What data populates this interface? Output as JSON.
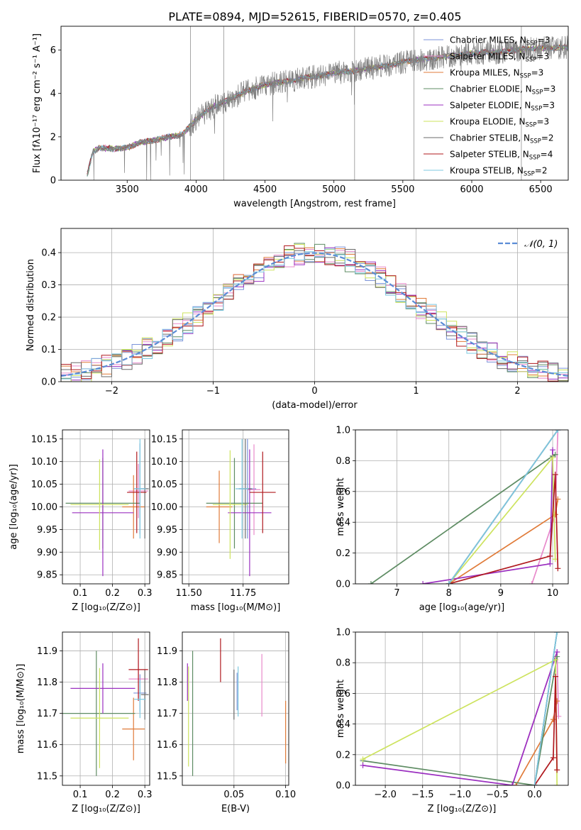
{
  "figure_title": "PLATE=0894, MJD=52615, FIBERID=0570, z=0.405",
  "colors": {
    "chabrier_miles": "#7b93d9",
    "salpeter_miles": "#e88acb",
    "kroupa_miles": "#e07b39",
    "chabrier_elodie": "#5e8c63",
    "salpeter_elodie": "#9b30c0",
    "kroupa_elodie": "#cde35e",
    "chabrier_stelib": "#6b6b6b",
    "salpeter_stelib": "#b0191e",
    "kroupa_stelib": "#7cc8e0",
    "data": "#808080",
    "gaussian": "#5b8cd6"
  },
  "legend_models": [
    {
      "label": "Chabrier MILES, N",
      "sub": "SSP",
      "tail": "=3",
      "color": "#7b93d9"
    },
    {
      "label": "Salpeter MILES, N",
      "sub": "SSP",
      "tail": "=3",
      "color": "#e88acb"
    },
    {
      "label": "Kroupa MILES, N",
      "sub": "SSP",
      "tail": "=3",
      "color": "#e07b39"
    },
    {
      "label": "Chabrier ELODIE, N",
      "sub": "SSP",
      "tail": "=3",
      "color": "#5e8c63"
    },
    {
      "label": "Salpeter ELODIE, N",
      "sub": "SSP",
      "tail": "=3",
      "color": "#9b30c0"
    },
    {
      "label": "Kroupa ELODIE, N",
      "sub": "SSP",
      "tail": "=3",
      "color": "#cde35e"
    },
    {
      "label": "Chabrier STELIB, N",
      "sub": "SSP",
      "tail": "=2",
      "color": "#6b6b6b"
    },
    {
      "label": "Salpeter STELIB, N",
      "sub": "SSP",
      "tail": "=4",
      "color": "#b0191e"
    },
    {
      "label": "Kroupa STELIB, N",
      "sub": "SSP",
      "tail": "=2",
      "color": "#7cc8e0"
    }
  ],
  "chart_data": [
    {
      "id": "spectrum",
      "type": "line",
      "title": "PLATE=0894, MJD=52615, FIBERID=0570, z=0.405",
      "xlabel": "wavelength [Angstrom, rest frame]",
      "ylabel": "Flux [fλ10⁻¹⁷ erg cm⁻² s⁻¹ A⁻¹]",
      "xlim": [
        3020,
        6700
      ],
      "ylim": [
        0,
        7.1
      ],
      "xticks": [
        3500,
        4000,
        4500,
        5000,
        5500,
        6000,
        6500
      ],
      "yticks": [
        0,
        2,
        4,
        6
      ],
      "legend_position": "top-right",
      "continuum_x": [
        3200,
        3250,
        3300,
        3400,
        3500,
        3600,
        3700,
        3800,
        3900,
        4000,
        4100,
        4200,
        4300,
        4400,
        4500,
        4600,
        4700,
        4800,
        4900,
        5000,
        5100,
        5200,
        5300,
        5400,
        5500,
        5600,
        5700,
        5800,
        5900,
        6000,
        6100,
        6200,
        6300,
        6400,
        6500,
        6600,
        6700
      ],
      "continuum_y": [
        0,
        1.3,
        1.5,
        1.45,
        1.5,
        1.75,
        1.85,
        2.0,
        2.1,
        2.8,
        3.3,
        3.6,
        3.9,
        4.2,
        4.4,
        4.5,
        4.6,
        4.75,
        4.8,
        4.95,
        5.0,
        5.1,
        5.2,
        5.3,
        5.45,
        5.55,
        5.6,
        5.7,
        5.75,
        5.85,
        5.9,
        5.9,
        6.0,
        6.05,
        6.1,
        6.1,
        6.15
      ]
    },
    {
      "id": "residuals",
      "type": "line",
      "xlabel": "(data-model)/error",
      "ylabel": "Normed distribution",
      "xlim": [
        -2.5,
        2.5
      ],
      "ylim": [
        0,
        0.475
      ],
      "xticks": [
        -2,
        -1,
        0,
        1,
        2
      ],
      "yticks": [
        0.0,
        0.1,
        0.2,
        0.3,
        0.4
      ],
      "legend": "𝒩(0, 1)",
      "legend_position": "top-right",
      "bin_width": 0.1
    },
    {
      "id": "age_vs_Z",
      "type": "scatter",
      "xlabel": "Z [log₁₀(Z/Z⊙)]",
      "ylabel": "age  [log₁₀(age/yr)]",
      "xlim": [
        0.045,
        0.315
      ],
      "ylim": [
        9.83,
        10.17
      ],
      "xticks": [
        0.1,
        0.2,
        0.3
      ],
      "yticks": [
        9.85,
        9.9,
        9.95,
        10.0,
        10.05,
        10.1,
        10.15
      ],
      "points": [
        {
          "model": "Chabrier MILES",
          "x": 0.285,
          "y": 10.04,
          "xerr": 0.02,
          "yerr": 0.1
        },
        {
          "model": "Salpeter MILES",
          "x": 0.28,
          "y": 10.035,
          "xerr": 0.03,
          "yerr": 0.06
        },
        {
          "model": "Kroupa MILES",
          "x": 0.265,
          "y": 10.0,
          "xerr": 0.035,
          "yerr": 0.07
        },
        {
          "model": "Chabrier ELODIE",
          "x": 0.17,
          "y": 10.008,
          "xerr": 0.115,
          "yerr": 0.1
        },
        {
          "model": "Salpeter ELODIE",
          "x": 0.17,
          "y": 9.987,
          "xerr": 0.095,
          "yerr": 0.14
        },
        {
          "model": "Kroupa ELODIE",
          "x": 0.16,
          "y": 10.005,
          "xerr": 0.09,
          "yerr": 0.1
        },
        {
          "model": "Chabrier STELIB",
          "x": 0.3,
          "y": 10.04,
          "xerr": 0.012,
          "yerr": 0.11
        },
        {
          "model": "Salpeter STELIB",
          "x": 0.275,
          "y": 10.032,
          "xerr": 0.03,
          "yerr": 0.09
        },
        {
          "model": "Kroupa STELIB",
          "x": 0.285,
          "y": 10.04,
          "xerr": 0.018,
          "yerr": 0.11
        }
      ]
    },
    {
      "id": "age_vs_mass",
      "type": "scatter",
      "xlabel": "mass [log₁₀(M/M⊙)]",
      "ylabel": "",
      "xlim": [
        11.47,
        11.96
      ],
      "ylim": [
        9.83,
        10.17
      ],
      "xticks": [
        11.5,
        11.75
      ],
      "yticks": [
        9.85,
        9.9,
        9.95,
        10.0,
        10.05,
        10.1,
        10.15
      ],
      "points": [
        {
          "model": "Chabrier MILES",
          "x": 11.77,
          "y": 10.04,
          "xerr": 0.04,
          "yerr": 0.11
        },
        {
          "model": "Salpeter MILES",
          "x": 11.8,
          "y": 10.038,
          "xerr": 0.03,
          "yerr": 0.1
        },
        {
          "model": "Kroupa MILES",
          "x": 11.64,
          "y": 10.0,
          "xerr": 0.06,
          "yerr": 0.08
        },
        {
          "model": "Chabrier ELODIE",
          "x": 11.71,
          "y": 10.008,
          "xerr": 0.13,
          "yerr": 0.1
        },
        {
          "model": "Salpeter ELODIE",
          "x": 11.78,
          "y": 9.987,
          "xerr": 0.1,
          "yerr": 0.14
        },
        {
          "model": "Kroupa ELODIE",
          "x": 11.69,
          "y": 10.005,
          "xerr": 0.08,
          "yerr": 0.12
        },
        {
          "model": "Chabrier STELIB",
          "x": 11.76,
          "y": 10.04,
          "xerr": 0.03,
          "yerr": 0.11
        },
        {
          "model": "Salpeter STELIB",
          "x": 11.84,
          "y": 10.032,
          "xerr": 0.06,
          "yerr": 0.09
        },
        {
          "model": "Kroupa STELIB",
          "x": 11.745,
          "y": 10.04,
          "xerr": 0.03,
          "yerr": 0.11
        }
      ]
    },
    {
      "id": "weight_vs_age",
      "type": "line",
      "xlabel": "age  [log₁₀(age/yr)]",
      "ylabel": "mass weight",
      "xlim": [
        6.2,
        10.3
      ],
      "ylim": [
        0,
        1
      ],
      "xticks": [
        7,
        8,
        9,
        10
      ],
      "yticks": [
        0.0,
        0.2,
        0.4,
        0.6,
        0.8,
        1.0
      ],
      "series": [
        {
          "model": "Chabrier MILES",
          "x": [
            8.0,
            10.1
          ],
          "y": [
            0.0,
            1.0
          ]
        },
        {
          "model": "Salpeter MILES",
          "x": [
            9.6,
            10.05,
            10.1
          ],
          "y": [
            0.0,
            0.45,
            1.0
          ]
        },
        {
          "model": "Kroupa MILES",
          "x": [
            8.0,
            10.05,
            10.1
          ],
          "y": [
            0.0,
            0.45,
            0.55
          ]
        },
        {
          "model": "Chabrier ELODIE",
          "x": [
            6.5,
            10.0,
            10.05
          ],
          "y": [
            0.0,
            0.83,
            0.84
          ]
        },
        {
          "model": "Salpeter ELODIE",
          "x": [
            7.5,
            9.95,
            10.0
          ],
          "y": [
            0.0,
            0.13,
            0.87
          ]
        },
        {
          "model": "Kroupa ELODIE",
          "x": [
            8.0,
            10.0,
            10.05
          ],
          "y": [
            0.0,
            0.82,
            0.16
          ]
        },
        {
          "model": "Chabrier STELIB",
          "x": [
            8.0,
            10.1
          ],
          "y": [
            0.0,
            1.0
          ]
        },
        {
          "model": "Salpeter STELIB",
          "x": [
            8.0,
            9.95,
            10.05,
            10.1
          ],
          "y": [
            0.0,
            0.18,
            0.71,
            0.1
          ]
        },
        {
          "model": "Kroupa STELIB",
          "x": [
            8.0,
            10.1
          ],
          "y": [
            0.0,
            1.0
          ]
        }
      ]
    },
    {
      "id": "mass_vs_Z",
      "type": "scatter",
      "xlabel": "Z [log₁₀(Z/Z⊙)]",
      "ylabel": "mass [log₁₀(M/M⊙)]",
      "xlim": [
        0.045,
        0.315
      ],
      "ylim": [
        11.47,
        11.96
      ],
      "xticks": [
        0.1,
        0.2,
        0.3
      ],
      "yticks": [
        11.5,
        11.6,
        11.7,
        11.8,
        11.9
      ],
      "points": [
        {
          "model": "Chabrier MILES",
          "x": 0.285,
          "y": 11.765,
          "xerr": 0.02,
          "yerr": 0.06
        },
        {
          "model": "Salpeter MILES",
          "x": 0.28,
          "y": 11.81,
          "xerr": 0.03,
          "yerr": 0.06
        },
        {
          "model": "Kroupa MILES",
          "x": 0.265,
          "y": 11.65,
          "xerr": 0.035,
          "yerr": 0.1
        },
        {
          "model": "Chabrier ELODIE",
          "x": 0.15,
          "y": 11.7,
          "xerr": 0.12,
          "yerr": 0.2
        },
        {
          "model": "Salpeter ELODIE",
          "x": 0.17,
          "y": 11.78,
          "xerr": 0.1,
          "yerr": 0.08
        },
        {
          "model": "Kroupa ELODIE",
          "x": 0.16,
          "y": 11.685,
          "xerr": 0.09,
          "yerr": 0.16
        },
        {
          "model": "Chabrier STELIB",
          "x": 0.3,
          "y": 11.76,
          "xerr": 0.012,
          "yerr": 0.08
        },
        {
          "model": "Salpeter STELIB",
          "x": 0.28,
          "y": 11.84,
          "xerr": 0.03,
          "yerr": 0.1
        },
        {
          "model": "Kroupa STELIB",
          "x": 0.285,
          "y": 11.745,
          "xerr": 0.018,
          "yerr": 0.06
        }
      ]
    },
    {
      "id": "mass_vs_ebv",
      "type": "scatter",
      "xlabel": "E(B-V)",
      "ylabel": "",
      "xlim": [
        0.0,
        0.103
      ],
      "ylim": [
        11.47,
        11.96
      ],
      "xticks": [
        0.05,
        0.1
      ],
      "yticks": [
        11.5,
        11.6,
        11.7,
        11.8,
        11.9
      ],
      "points": [
        {
          "model": "Chabrier MILES",
          "x": 0.053,
          "y": 11.77,
          "yerr": 0.06
        },
        {
          "model": "Salpeter MILES",
          "x": 0.077,
          "y": 11.79,
          "yerr": 0.1
        },
        {
          "model": "Kroupa MILES",
          "x": 0.1,
          "y": 11.64,
          "yerr": 0.1
        },
        {
          "model": "Chabrier ELODIE",
          "x": 0.01,
          "y": 11.7,
          "yerr": 0.2
        },
        {
          "model": "Salpeter ELODIE",
          "x": 0.005,
          "y": 11.8,
          "yerr": 0.06
        },
        {
          "model": "Kroupa ELODIE",
          "x": 0.006,
          "y": 11.69,
          "yerr": 0.16
        },
        {
          "model": "Chabrier STELIB",
          "x": 0.05,
          "y": 11.76,
          "yerr": 0.08
        },
        {
          "model": "Salpeter STELIB",
          "x": 0.037,
          "y": 11.87,
          "yerr": 0.07
        },
        {
          "model": "Kroupa STELIB",
          "x": 0.054,
          "y": 11.77,
          "yerr": 0.08
        }
      ]
    },
    {
      "id": "weight_vs_Z",
      "type": "line",
      "xlabel": "Z [log₁₀(Z/Z⊙)]",
      "ylabel": "mass weight",
      "xlim": [
        -2.4,
        0.45
      ],
      "ylim": [
        0,
        1
      ],
      "xticks": [
        -2.0,
        -1.5,
        -1.0,
        -0.5,
        0.0
      ],
      "yticks": [
        0.0,
        0.2,
        0.4,
        0.6,
        0.8,
        1.0
      ],
      "series": [
        {
          "model": "Chabrier MILES",
          "x": [
            0.0,
            0.3
          ],
          "y": [
            0.0,
            1.0
          ]
        },
        {
          "model": "Salpeter MILES",
          "x": [
            -0.3,
            0.3,
            0.32
          ],
          "y": [
            0.0,
            0.87,
            0.45
          ]
        },
        {
          "model": "Kroupa MILES",
          "x": [
            -0.25,
            0.25,
            0.3
          ],
          "y": [
            0.0,
            0.43,
            0.55
          ]
        },
        {
          "model": "Chabrier ELODIE",
          "x": [
            -2.3,
            0.0,
            0.3
          ],
          "y": [
            0.16,
            0.0,
            0.84
          ]
        },
        {
          "model": "Salpeter ELODIE",
          "x": [
            -2.3,
            -0.3,
            0.3
          ],
          "y": [
            0.13,
            0.0,
            0.87
          ]
        },
        {
          "model": "Kroupa ELODIE",
          "x": [
            -2.3,
            0.28,
            0.3
          ],
          "y": [
            0.17,
            0.82,
            0.0
          ]
        },
        {
          "model": "Chabrier STELIB",
          "x": [
            0.0,
            0.3
          ],
          "y": [
            0.0,
            1.0
          ]
        },
        {
          "model": "Salpeter STELIB",
          "x": [
            0.0,
            0.25,
            0.28,
            0.3
          ],
          "y": [
            0.0,
            0.18,
            0.71,
            0.1
          ]
        },
        {
          "model": "Kroupa STELIB",
          "x": [
            0.0,
            0.3
          ],
          "y": [
            0.0,
            1.0
          ]
        }
      ]
    }
  ]
}
